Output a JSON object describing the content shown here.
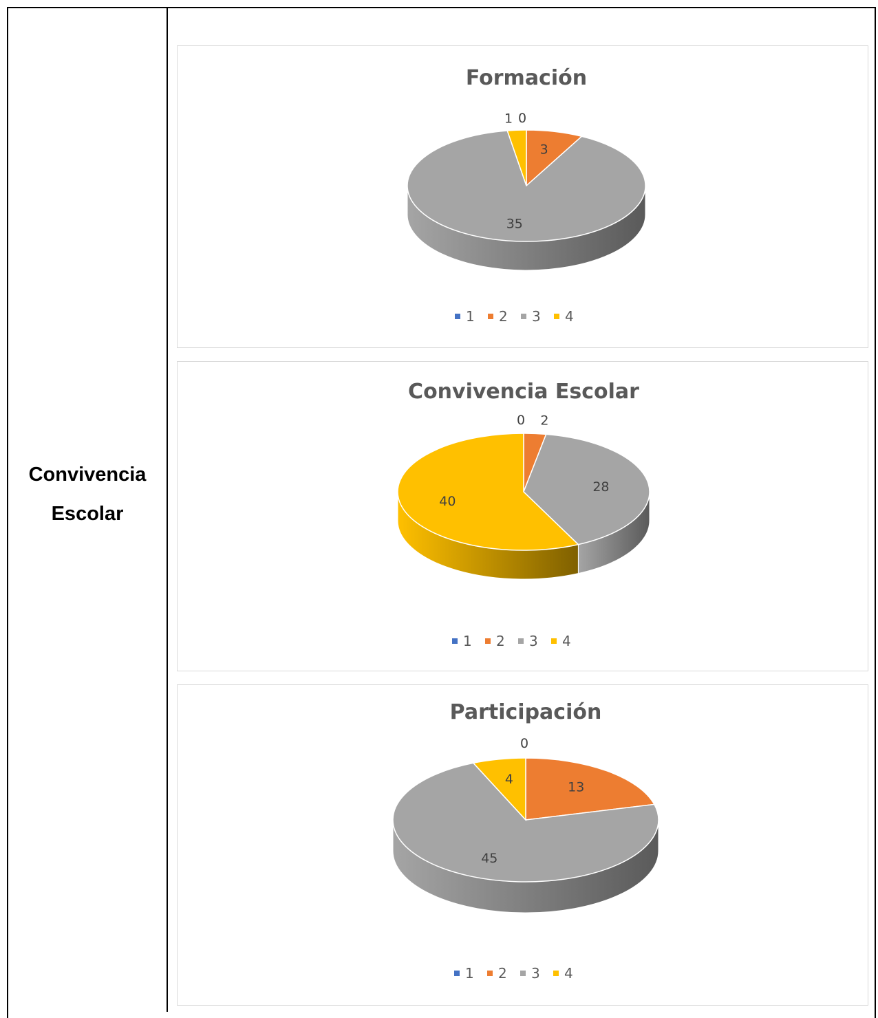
{
  "row_label": {
    "line1": "Convivencia",
    "line2": "Escolar"
  },
  "colors": {
    "s1": "#4472C4",
    "s2": "#ED7D31",
    "s3": "#A5A5A5",
    "s4": "#FFC000"
  },
  "chart_data": [
    {
      "type": "pie",
      "title": "Formación",
      "categories": [
        "1",
        "2",
        "3",
        "4"
      ],
      "values": [
        0,
        3,
        35,
        1
      ],
      "legend": "bottom"
    },
    {
      "type": "pie",
      "title": "Convivencia Escolar",
      "categories": [
        "1",
        "2",
        "3",
        "4"
      ],
      "values": [
        0,
        2,
        28,
        40
      ],
      "legend": "bottom"
    },
    {
      "type": "pie",
      "title": "Participación",
      "categories": [
        "1",
        "2",
        "3",
        "4"
      ],
      "values": [
        0,
        13,
        45,
        4
      ],
      "legend": "bottom"
    }
  ]
}
